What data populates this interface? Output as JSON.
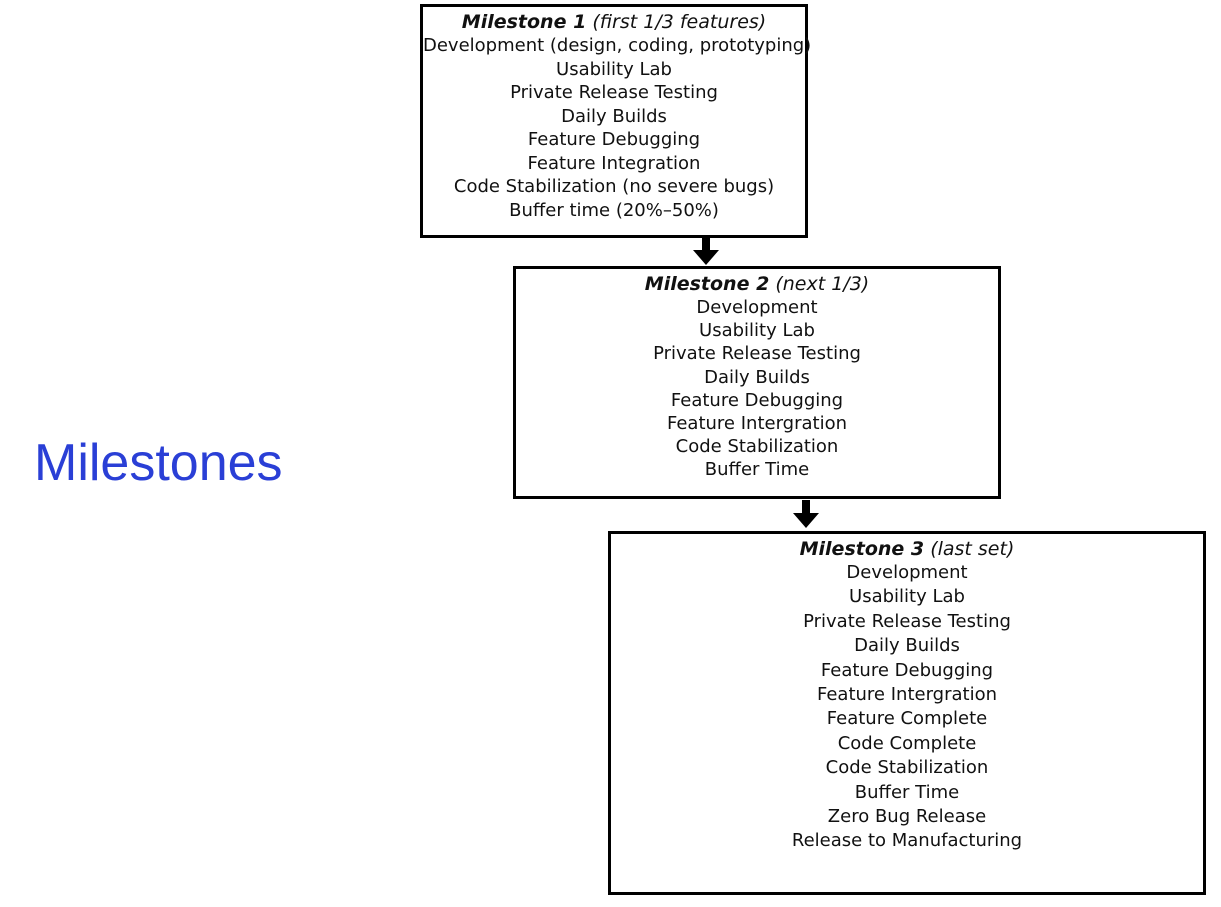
{
  "title": "Milestones",
  "colors": {
    "title": "#2a3fd6",
    "border": "#000000",
    "arrow": "#000000"
  },
  "milestones": [
    {
      "name": "Milestone 1",
      "subtitle": "(first 1/3 features)",
      "items": [
        "Development (design, coding, prototyping)",
        "Usability Lab",
        "Private Release Testing",
        "Daily Builds",
        "Feature Debugging",
        "Feature Integration",
        "Code Stabilization (no severe bugs)",
        "Buffer time (20%–50%)"
      ]
    },
    {
      "name": "Milestone 2",
      "subtitle": "(next 1/3)",
      "items": [
        "Development",
        "Usability Lab",
        "Private Release Testing",
        "Daily Builds",
        "Feature Debugging",
        "Feature Intergration",
        "Code Stabilization",
        "Buffer Time"
      ]
    },
    {
      "name": "Milestone 3",
      "subtitle": "(last set)",
      "items": [
        "Development",
        "Usability Lab",
        "Private Release Testing",
        "Daily Builds",
        "Feature Debugging",
        "Feature Intergration",
        "Feature Complete",
        "Code Complete",
        "Code Stabilization",
        "Buffer Time",
        "Zero Bug Release",
        "Release to Manufacturing"
      ]
    }
  ]
}
